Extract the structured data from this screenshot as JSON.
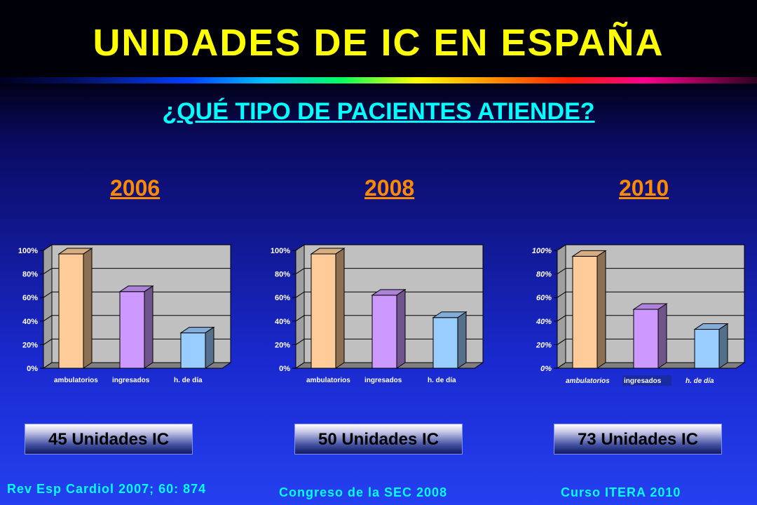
{
  "title": "UNIDADES DE IC EN ESPAÑA",
  "subtitle": "¿QUÉ TIPO DE PACIENTES ATIENDE?",
  "panels": [
    {
      "year": "2006",
      "units_label": "45 Unidades IC",
      "source": "Rev Esp Cardiol 2007; 60: 874"
    },
    {
      "year": "2008",
      "units_label": "50 Unidades IC",
      "source": "Congreso de la SEC 2008"
    },
    {
      "year": "2010",
      "units_label": "73 Unidades IC",
      "source": "Curso ITERA 2010"
    }
  ],
  "chart_data": [
    {
      "type": "bar",
      "title": "",
      "categories": [
        "ambulatorios",
        "ingresados",
        "h. de día"
      ],
      "values": [
        97,
        65,
        30
      ],
      "yticks": [
        "0%",
        "20%",
        "40%",
        "60%",
        "80%",
        "100%"
      ],
      "ylim": [
        0,
        100
      ],
      "colors": [
        "#ffcc99",
        "#cc99ff",
        "#99ccff"
      ]
    },
    {
      "type": "bar",
      "title": "",
      "categories": [
        "ambulatorios",
        "ingresados",
        "h. de día"
      ],
      "values": [
        97,
        62,
        43
      ],
      "yticks": [
        "0%",
        "20%",
        "40%",
        "60%",
        "80%",
        "100%"
      ],
      "ylim": [
        0,
        100
      ],
      "colors": [
        "#ffcc99",
        "#cc99ff",
        "#99ccff"
      ]
    },
    {
      "type": "bar",
      "title": "",
      "categories": [
        "ambulatorios",
        "ingresados",
        "h. de día"
      ],
      "values": [
        95,
        50,
        33
      ],
      "yticks": [
        "0%",
        "20%",
        "40%",
        "60%",
        "80%",
        "100%"
      ],
      "ylim": [
        0,
        100
      ],
      "colors": [
        "#ffcc99",
        "#cc99ff",
        "#99ccff"
      ]
    }
  ]
}
